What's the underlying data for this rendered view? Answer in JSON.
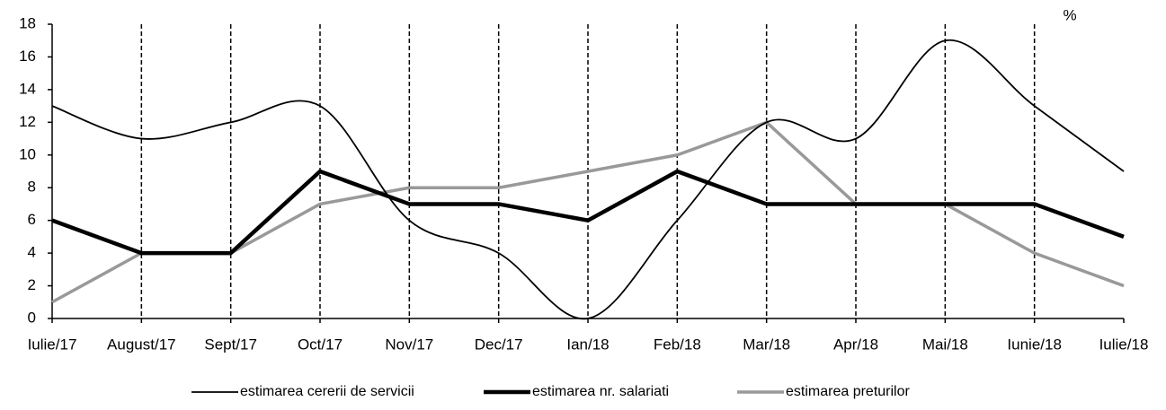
{
  "chart_data": {
    "type": "line",
    "annotation": "%",
    "categories": [
      "Iulie/17",
      "August/17",
      "Sept/17",
      "Oct/17",
      "Nov/17",
      "Dec/17",
      "Ian/18",
      "Feb/18",
      "Mar/18",
      "Apr/18",
      "Mai/18",
      "Iunie/18",
      "Iulie/18"
    ],
    "series": [
      {
        "name": "estimarea cererii de servicii",
        "color": "#000000",
        "smooth": true,
        "values": [
          13,
          11,
          12,
          13,
          6,
          4,
          0,
          6,
          12,
          11,
          17,
          13,
          9
        ]
      },
      {
        "name": "estimarea nr. salariati",
        "color": "#000000",
        "smooth": false,
        "values": [
          6,
          4,
          4,
          9,
          7,
          7,
          6,
          9,
          7,
          7,
          7,
          7,
          5
        ]
      },
      {
        "name": "estimarea preturilor",
        "color": "#999999",
        "smooth": false,
        "values": [
          1,
          4,
          4,
          7,
          8,
          8,
          9,
          10,
          12,
          7,
          7,
          4,
          2
        ]
      }
    ],
    "ylim": [
      0,
      18
    ],
    "yticks": [
      0,
      2,
      4,
      6,
      8,
      10,
      12,
      14,
      16,
      18
    ],
    "xgrid": true,
    "legend": "bottom"
  }
}
